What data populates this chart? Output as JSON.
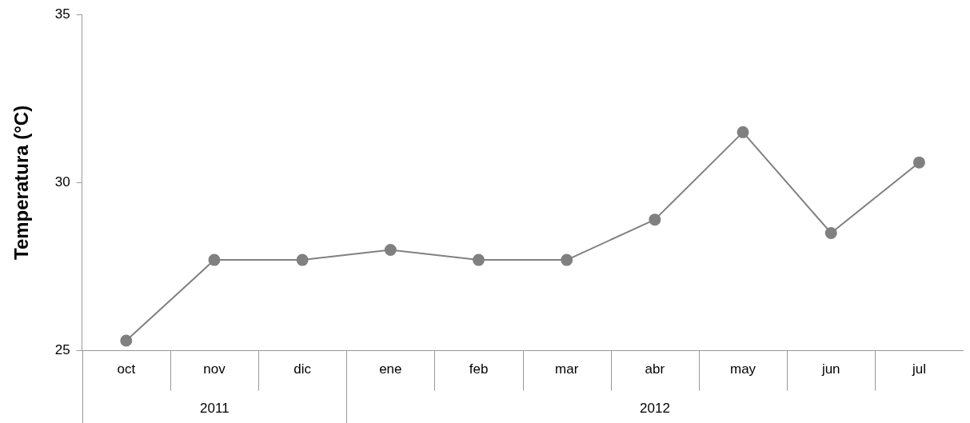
{
  "chart_data": {
    "type": "line",
    "ylabel": "Temperatura (°C)",
    "categories": [
      "oct",
      "nov",
      "dic",
      "ene",
      "feb",
      "mar",
      "abr",
      "may",
      "jun",
      "jul"
    ],
    "series": [
      {
        "color": "#808080",
        "values": [
          25.3,
          27.7,
          27.7,
          28.0,
          27.7,
          27.7,
          28.9,
          31.5,
          28.5,
          30.6
        ]
      }
    ],
    "ylim": [
      25,
      35
    ],
    "yticks": [
      25,
      30,
      35
    ],
    "grid": false,
    "legend": false,
    "marker": "circle",
    "line_style": "solid",
    "annotations": [
      "2011",
      "2012"
    ]
  }
}
